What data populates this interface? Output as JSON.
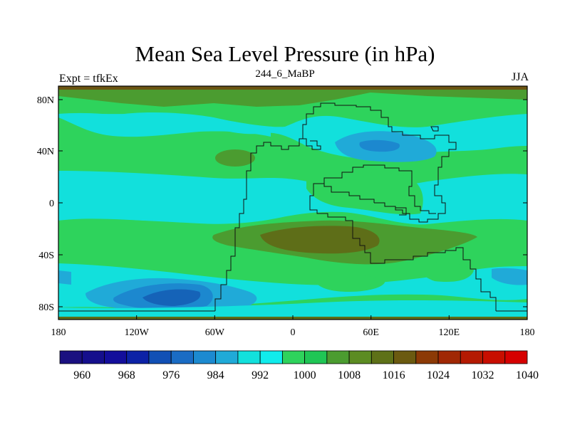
{
  "title": "Mean Sea Level Pressure (in hPa)",
  "left_label": "Expt = tfkEx",
  "center_label": "244_6_MaBP",
  "right_label": "JJA",
  "lat_ticks": [
    "80N",
    "40N",
    "0",
    "40S",
    "80S"
  ],
  "lon_ticks": [
    "180",
    "120W",
    "60W",
    "0",
    "60E",
    "120E",
    "180"
  ],
  "colorbar": {
    "labels": [
      "960",
      "968",
      "976",
      "984",
      "992",
      "1000",
      "1008",
      "1016",
      "1024",
      "1032",
      "1040"
    ],
    "colors": [
      "#1a1080",
      "#150f8c",
      "#130e9b",
      "#0c22a6",
      "#1150b5",
      "#1a6cc4",
      "#1c8ad0",
      "#20aad8",
      "#12e0dc",
      "#10ecec",
      "#2ed35c",
      "#1fc655",
      "#4b9c30",
      "#5c8c22",
      "#5e7118",
      "#6b5a10",
      "#8c3a06",
      "#a02804",
      "#b41a02",
      "#c80e00",
      "#d60000"
    ]
  },
  "map_colors": {
    "green_light": "#2ed35c",
    "green_dark": "#1fbf52",
    "olive": "#4b9c30",
    "olive_dark": "#5e6e18",
    "brown": "#6b5412",
    "cyan": "#12e0dc",
    "cyan_light": "#19ece4",
    "blue_light": "#20aad8",
    "blue": "#1c88cf",
    "blue_dark": "#1563b8"
  }
}
